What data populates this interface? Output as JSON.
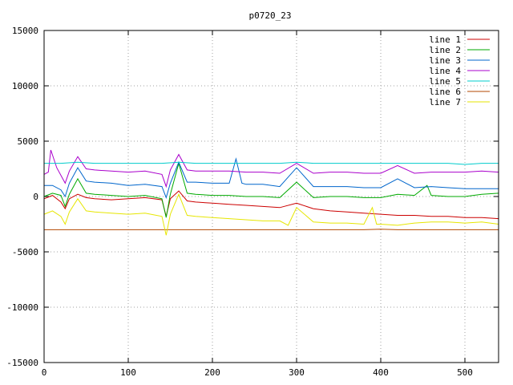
{
  "chart_data": {
    "type": "line",
    "title": "p0720_23",
    "xlabel": "",
    "ylabel": "",
    "xlim": [
      0,
      540
    ],
    "ylim": [
      -15000,
      15000
    ],
    "xticks": [
      0,
      100,
      200,
      300,
      400,
      500
    ],
    "yticks": [
      -15000,
      -10000,
      -5000,
      0,
      5000,
      10000,
      15000
    ],
    "grid": true,
    "legend_position": "top-right",
    "series": [
      {
        "name": "line 1",
        "color": "#cc0000",
        "x": [
          0,
          10,
          20,
          25,
          30,
          40,
          50,
          60,
          80,
          100,
          120,
          140,
          145,
          150,
          160,
          170,
          180,
          200,
          220,
          240,
          260,
          280,
          300,
          320,
          340,
          360,
          380,
          400,
          420,
          440,
          460,
          480,
          500,
          520,
          540
        ],
        "y": [
          -200,
          100,
          -500,
          -1100,
          -200,
          200,
          -100,
          -200,
          -300,
          -200,
          -100,
          -300,
          -1800,
          -200,
          500,
          -400,
          -500,
          -600,
          -700,
          -800,
          -900,
          -1000,
          -600,
          -1100,
          -1300,
          -1400,
          -1500,
          -1600,
          -1700,
          -1700,
          -1800,
          -1800,
          -1900,
          -1900,
          -2000
        ]
      },
      {
        "name": "line 2",
        "color": "#00aa00",
        "x": [
          0,
          10,
          20,
          25,
          30,
          40,
          50,
          60,
          80,
          100,
          120,
          140,
          145,
          150,
          160,
          170,
          180,
          200,
          220,
          240,
          260,
          280,
          300,
          320,
          340,
          360,
          380,
          400,
          420,
          440,
          455,
          460,
          480,
          500,
          520,
          540
        ],
        "y": [
          0,
          300,
          100,
          -900,
          200,
          1600,
          300,
          200,
          100,
          0,
          100,
          -200,
          -1900,
          200,
          3000,
          300,
          200,
          100,
          100,
          0,
          0,
          -100,
          1300,
          -100,
          0,
          0,
          -100,
          -100,
          200,
          100,
          1000,
          100,
          0,
          0,
          200,
          300
        ]
      },
      {
        "name": "line 3",
        "color": "#0066cc",
        "x": [
          0,
          10,
          20,
          25,
          30,
          40,
          50,
          60,
          80,
          100,
          120,
          140,
          145,
          150,
          160,
          170,
          180,
          200,
          220,
          228,
          235,
          240,
          260,
          280,
          300,
          320,
          340,
          360,
          380,
          400,
          420,
          440,
          460,
          480,
          500,
          520,
          540
        ],
        "y": [
          1000,
          1000,
          600,
          0,
          1200,
          2600,
          1400,
          1300,
          1200,
          1000,
          1100,
          900,
          -100,
          1200,
          3100,
          1300,
          1300,
          1200,
          1200,
          3400,
          1200,
          1100,
          1100,
          900,
          2600,
          900,
          900,
          900,
          800,
          800,
          1600,
          800,
          900,
          800,
          700,
          700,
          700
        ]
      },
      {
        "name": "line 4",
        "color": "#aa00cc",
        "x": [
          0,
          5,
          8,
          15,
          25,
          30,
          40,
          50,
          60,
          80,
          100,
          120,
          140,
          145,
          150,
          160,
          170,
          180,
          200,
          220,
          240,
          260,
          280,
          300,
          320,
          340,
          360,
          380,
          400,
          420,
          440,
          460,
          480,
          500,
          520,
          540
        ],
        "y": [
          2000,
          2200,
          4200,
          2600,
          1200,
          2300,
          3600,
          2500,
          2400,
          2300,
          2200,
          2300,
          2000,
          900,
          2400,
          3800,
          2400,
          2300,
          2300,
          2300,
          2200,
          2200,
          2100,
          3000,
          2100,
          2200,
          2200,
          2100,
          2100,
          2800,
          2100,
          2200,
          2200,
          2200,
          2300,
          2200
        ]
      },
      {
        "name": "line 5",
        "color": "#00cccc",
        "x": [
          0,
          20,
          40,
          60,
          80,
          100,
          120,
          140,
          160,
          180,
          200,
          220,
          240,
          260,
          280,
          300,
          320,
          340,
          360,
          380,
          400,
          420,
          440,
          460,
          480,
          500,
          520,
          540
        ],
        "y": [
          3000,
          3000,
          3100,
          3000,
          3000,
          3000,
          3000,
          3000,
          3100,
          3000,
          3000,
          3000,
          3000,
          3000,
          3000,
          3100,
          3000,
          3000,
          3000,
          3000,
          3000,
          3000,
          3000,
          3000,
          3000,
          2900,
          3000,
          3000
        ]
      },
      {
        "name": "line 6",
        "color": "#b34700",
        "x": [
          0,
          20,
          40,
          60,
          80,
          100,
          120,
          140,
          160,
          180,
          200,
          220,
          240,
          260,
          280,
          300,
          320,
          340,
          360,
          380,
          400,
          420,
          440,
          460,
          480,
          500,
          520,
          540
        ],
        "y": [
          -3000,
          -3000,
          -3000,
          -3000,
          -3000,
          -3000,
          -3000,
          -3000,
          -3000,
          -3000,
          -3000,
          -3000,
          -3000,
          -3000,
          -3000,
          -3000,
          -3000,
          -3000,
          -3000,
          -3000,
          -2950,
          -3000,
          -3000,
          -3000,
          -3000,
          -3000,
          -3000,
          -3000
        ]
      },
      {
        "name": "line 7",
        "color": "#e6e600",
        "x": [
          0,
          10,
          20,
          25,
          30,
          40,
          50,
          60,
          80,
          100,
          120,
          140,
          145,
          150,
          160,
          170,
          180,
          200,
          220,
          240,
          260,
          280,
          290,
          300,
          320,
          340,
          360,
          380,
          390,
          395,
          400,
          420,
          440,
          460,
          480,
          500,
          520,
          540
        ],
        "y": [
          -1600,
          -1300,
          -1800,
          -2500,
          -1400,
          -200,
          -1300,
          -1400,
          -1500,
          -1600,
          -1500,
          -1800,
          -3500,
          -1600,
          200,
          -1700,
          -1800,
          -1900,
          -2000,
          -2100,
          -2200,
          -2200,
          -2600,
          -1000,
          -2300,
          -2400,
          -2400,
          -2500,
          -1000,
          -2500,
          -2500,
          -2600,
          -2400,
          -2300,
          -2300,
          -2400,
          -2300,
          -2500
        ]
      }
    ]
  }
}
